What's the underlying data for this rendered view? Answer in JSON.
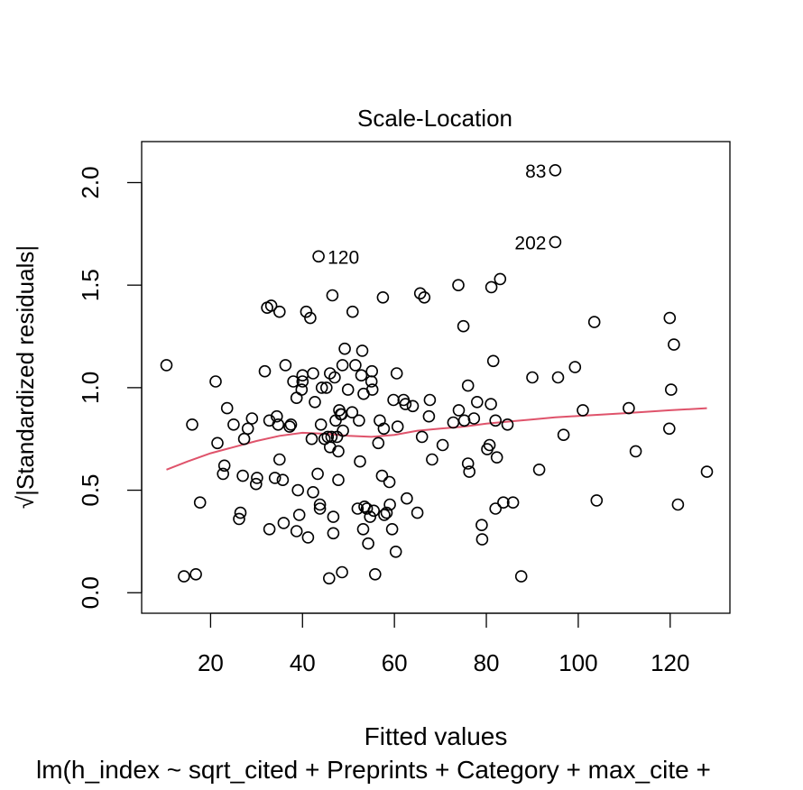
{
  "chart_data": {
    "type": "scatter",
    "title": "Scale-Location",
    "xlabel": "Fitted values",
    "subtitle": "lm(h_index ~ sqrt_cited + Preprints + Category + max_cite +",
    "ylabel": "√|Standardized residuals|",
    "xlim": [
      5,
      133
    ],
    "ylim": [
      -0.1,
      2.2
    ],
    "x_ticks": [
      "20",
      "40",
      "60",
      "80",
      "100",
      "120"
    ],
    "x_tick_values": [
      20,
      40,
      60,
      80,
      100,
      120
    ],
    "y_ticks": [
      "0.0",
      "0.5",
      "1.0",
      "1.5",
      "2.0"
    ],
    "y_tick_values": [
      0.0,
      0.5,
      1.0,
      1.5,
      2.0
    ],
    "grid": false,
    "colors": {
      "points": "#000000",
      "smooth_line": "#DF536B"
    },
    "labeled_points": [
      {
        "label": "83",
        "x": 95.0,
        "y": 2.06
      },
      {
        "label": "202",
        "x": 95.0,
        "y": 1.71
      },
      {
        "label": "120",
        "x": 43.5,
        "y": 1.64
      }
    ],
    "points": [
      [
        10.4,
        1.11
      ],
      [
        14.2,
        0.08
      ],
      [
        16.0,
        0.82
      ],
      [
        16.8,
        0.09
      ],
      [
        17.7,
        0.44
      ],
      [
        21.1,
        1.03
      ],
      [
        21.5,
        0.73
      ],
      [
        22.7,
        0.58
      ],
      [
        23.0,
        0.62
      ],
      [
        23.6,
        0.9
      ],
      [
        25.0,
        0.82
      ],
      [
        26.2,
        0.36
      ],
      [
        26.5,
        0.39
      ],
      [
        27.0,
        0.57
      ],
      [
        27.3,
        0.75
      ],
      [
        28.1,
        0.8
      ],
      [
        29.0,
        0.85
      ],
      [
        29.9,
        0.53
      ],
      [
        30.1,
        0.56
      ],
      [
        31.8,
        1.08
      ],
      [
        32.3,
        1.39
      ],
      [
        32.8,
        0.31
      ],
      [
        32.8,
        0.84
      ],
      [
        33.2,
        1.4
      ],
      [
        34.0,
        0.56
      ],
      [
        34.4,
        0.86
      ],
      [
        34.7,
        0.82
      ],
      [
        35.0,
        1.37
      ],
      [
        35.0,
        0.65
      ],
      [
        35.7,
        0.55
      ],
      [
        35.9,
        0.34
      ],
      [
        36.3,
        1.11
      ],
      [
        37.2,
        0.81
      ],
      [
        37.5,
        0.82
      ],
      [
        38.0,
        1.03
      ],
      [
        38.7,
        0.3
      ],
      [
        38.7,
        0.95
      ],
      [
        39.0,
        0.5
      ],
      [
        39.3,
        0.38
      ],
      [
        39.8,
        0.99
      ],
      [
        40.0,
        1.03
      ],
      [
        40.0,
        1.06
      ],
      [
        40.8,
        1.37
      ],
      [
        41.2,
        0.27
      ],
      [
        41.7,
        1.34
      ],
      [
        42.0,
        0.75
      ],
      [
        42.3,
        1.07
      ],
      [
        42.3,
        0.49
      ],
      [
        42.7,
        0.93
      ],
      [
        43.3,
        0.58
      ],
      [
        43.5,
        1.64
      ],
      [
        43.8,
        0.41
      ],
      [
        43.8,
        0.43
      ],
      [
        44.0,
        0.82
      ],
      [
        44.2,
        1.0
      ],
      [
        44.8,
        0.75
      ],
      [
        45.2,
        1.0
      ],
      [
        45.5,
        0.76
      ],
      [
        45.8,
        0.07
      ],
      [
        46.0,
        1.07
      ],
      [
        46.0,
        0.71
      ],
      [
        46.3,
        0.76
      ],
      [
        46.5,
        1.45
      ],
      [
        46.7,
        0.37
      ],
      [
        46.7,
        0.29
      ],
      [
        47.0,
        1.05
      ],
      [
        47.2,
        0.84
      ],
      [
        47.5,
        0.76
      ],
      [
        47.8,
        0.69
      ],
      [
        47.8,
        0.55
      ],
      [
        48.0,
        0.89
      ],
      [
        48.3,
        0.87
      ],
      [
        48.5,
        0.87
      ],
      [
        48.6,
        0.1
      ],
      [
        48.7,
        1.11
      ],
      [
        48.8,
        0.79
      ],
      [
        49.2,
        1.19
      ],
      [
        49.9,
        0.99
      ],
      [
        50.8,
        0.88
      ],
      [
        50.9,
        1.37
      ],
      [
        51.5,
        1.11
      ],
      [
        52.0,
        0.41
      ],
      [
        52.3,
        0.84
      ],
      [
        52.5,
        0.64
      ],
      [
        52.8,
        1.06
      ],
      [
        53.0,
        1.18
      ],
      [
        53.2,
        0.31
      ],
      [
        53.3,
        0.97
      ],
      [
        53.5,
        0.42
      ],
      [
        54.0,
        0.41
      ],
      [
        54.3,
        0.24
      ],
      [
        54.7,
        0.37
      ],
      [
        55.0,
        1.03
      ],
      [
        55.1,
        1.08
      ],
      [
        55.2,
        0.99
      ],
      [
        55.5,
        0.4
      ],
      [
        55.8,
        0.09
      ],
      [
        56.5,
        0.73
      ],
      [
        56.8,
        0.84
      ],
      [
        57.3,
        0.57
      ],
      [
        57.5,
        1.44
      ],
      [
        57.7,
        0.8
      ],
      [
        57.8,
        0.38
      ],
      [
        58.3,
        0.39
      ],
      [
        58.9,
        0.54
      ],
      [
        59.0,
        0.43
      ],
      [
        59.5,
        0.31
      ],
      [
        59.8,
        0.94
      ],
      [
        60.3,
        0.2
      ],
      [
        60.5,
        1.07
      ],
      [
        60.7,
        0.81
      ],
      [
        62.0,
        0.94
      ],
      [
        62.4,
        0.92
      ],
      [
        62.7,
        0.46
      ],
      [
        64.0,
        0.91
      ],
      [
        65.0,
        0.39
      ],
      [
        65.6,
        1.46
      ],
      [
        66.0,
        0.76
      ],
      [
        66.5,
        1.44
      ],
      [
        67.5,
        0.86
      ],
      [
        67.7,
        0.94
      ],
      [
        68.2,
        0.65
      ],
      [
        70.5,
        0.72
      ],
      [
        72.8,
        0.83
      ],
      [
        73.9,
        1.5
      ],
      [
        74.0,
        0.89
      ],
      [
        75.0,
        1.3
      ],
      [
        75.2,
        0.84
      ],
      [
        76.0,
        1.01
      ],
      [
        76.0,
        0.63
      ],
      [
        76.3,
        0.59
      ],
      [
        77.3,
        0.85
      ],
      [
        78.0,
        0.93
      ],
      [
        79.0,
        0.33
      ],
      [
        79.1,
        0.26
      ],
      [
        80.2,
        0.7
      ],
      [
        80.7,
        0.72
      ],
      [
        81.0,
        0.92
      ],
      [
        81.1,
        1.49
      ],
      [
        81.5,
        1.13
      ],
      [
        82.0,
        0.41
      ],
      [
        82.0,
        0.84
      ],
      [
        82.3,
        0.66
      ],
      [
        83.0,
        1.53
      ],
      [
        83.7,
        0.44
      ],
      [
        84.6,
        0.82
      ],
      [
        85.8,
        0.44
      ],
      [
        87.6,
        0.08
      ],
      [
        90.0,
        1.05
      ],
      [
        91.5,
        0.6
      ],
      [
        95.0,
        2.06
      ],
      [
        95.0,
        1.71
      ],
      [
        95.6,
        1.05
      ],
      [
        96.8,
        0.77
      ],
      [
        99.3,
        1.1
      ],
      [
        101.0,
        0.89
      ],
      [
        103.5,
        1.32
      ],
      [
        104.0,
        0.45
      ],
      [
        111.0,
        0.9
      ],
      [
        112.5,
        0.69
      ],
      [
        119.8,
        0.8
      ],
      [
        119.9,
        1.34
      ],
      [
        120.2,
        0.99
      ],
      [
        120.8,
        1.21
      ],
      [
        121.7,
        0.43
      ],
      [
        128.0,
        0.59
      ]
    ],
    "smooth_line": [
      [
        10.4,
        0.6
      ],
      [
        15,
        0.64
      ],
      [
        20,
        0.68
      ],
      [
        25,
        0.71
      ],
      [
        30,
        0.74
      ],
      [
        35,
        0.765
      ],
      [
        40,
        0.78
      ],
      [
        45,
        0.775
      ],
      [
        50,
        0.765
      ],
      [
        55,
        0.76
      ],
      [
        60,
        0.77
      ],
      [
        65,
        0.79
      ],
      [
        70,
        0.8
      ],
      [
        75,
        0.81
      ],
      [
        80,
        0.825
      ],
      [
        85,
        0.835
      ],
      [
        90,
        0.845
      ],
      [
        95,
        0.855
      ],
      [
        100,
        0.862
      ],
      [
        110,
        0.875
      ],
      [
        120,
        0.89
      ],
      [
        128,
        0.9
      ]
    ]
  }
}
